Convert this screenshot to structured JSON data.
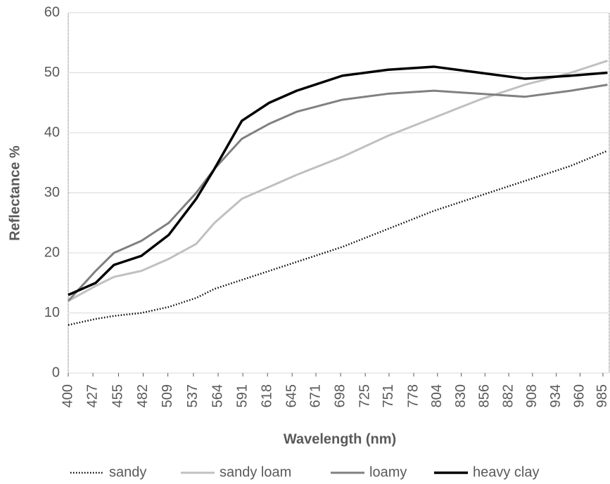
{
  "chart_data": {
    "type": "line",
    "xlabel": "Wavelength (nm)",
    "ylabel": "Reflectance %",
    "x": [
      400,
      430,
      450,
      480,
      510,
      540,
      560,
      590,
      620,
      650,
      700,
      750,
      800,
      850,
      900,
      950,
      990
    ],
    "series": [
      {
        "name": "sandy",
        "color": "#000000",
        "style": "dotted",
        "values": [
          8,
          9,
          9.5,
          10,
          11,
          12.5,
          14,
          15.5,
          17,
          18.5,
          21,
          24,
          27,
          29.5,
          32,
          34.5,
          37
        ]
      },
      {
        "name": "sandy loam",
        "color": "#c0c0c0",
        "style": "solid",
        "values": [
          12,
          14.5,
          16,
          17,
          19,
          21.5,
          25,
          29,
          31,
          33,
          36,
          39.5,
          42.5,
          45.5,
          48,
          50,
          52
        ]
      },
      {
        "name": "loamy",
        "color": "#808080",
        "style": "solid",
        "values": [
          12,
          17,
          20,
          22,
          25,
          30,
          34,
          39,
          41.5,
          43.5,
          45.5,
          46.5,
          47,
          46.5,
          46,
          47,
          48
        ]
      },
      {
        "name": "heavy clay",
        "color": "#000000",
        "style": "solid",
        "values": [
          13,
          15,
          18,
          19.5,
          23,
          29,
          34,
          42,
          45,
          47,
          49.5,
          50.5,
          51,
          50,
          49,
          49.5,
          50
        ]
      }
    ],
    "xlim": [
      400,
      992
    ],
    "xticks": [
      400,
      427,
      455,
      482,
      509,
      537,
      564,
      591,
      618,
      645,
      671,
      698,
      725,
      751,
      778,
      804,
      830,
      856,
      882,
      908,
      934,
      960,
      985
    ],
    "ylim": [
      0,
      60
    ],
    "yticks": [
      0,
      10,
      20,
      30,
      40,
      50,
      60
    ],
    "grid": true,
    "legend": "bottom"
  }
}
